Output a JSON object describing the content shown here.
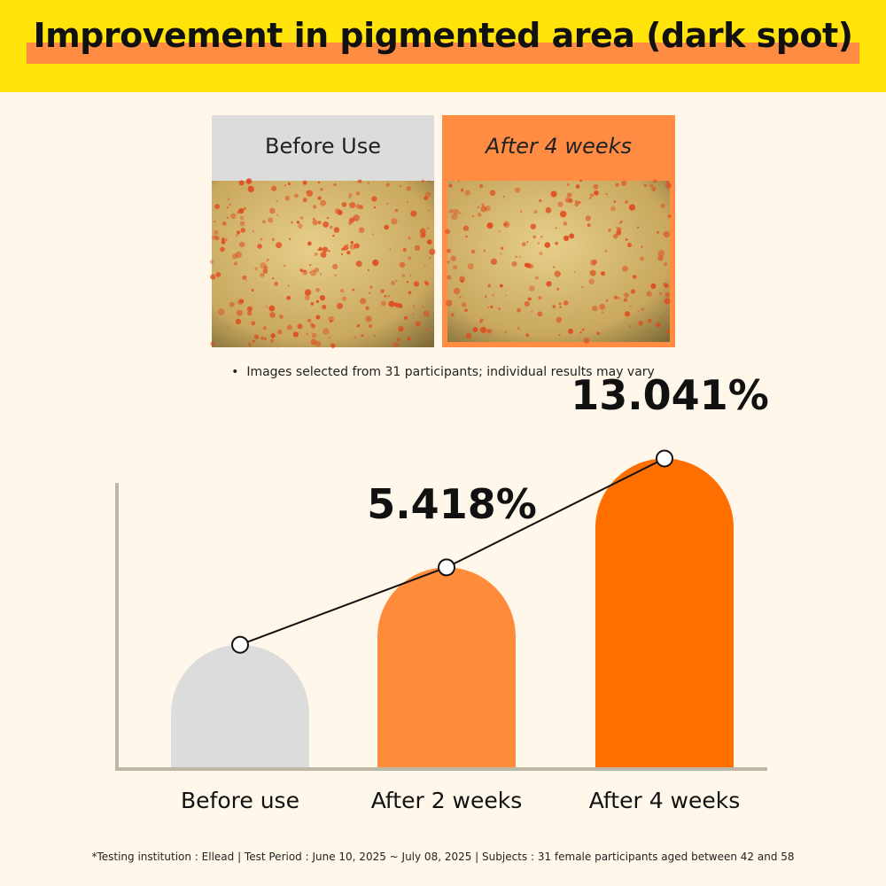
{
  "header": {
    "title": "Improvement in pigmented area (dark spot)"
  },
  "images": {
    "before_caption": "Before Use",
    "after_caption": "After 4 weeks",
    "note": "Images selected from 31 participants; individual results may vary"
  },
  "chart_data": {
    "type": "bar",
    "categories": [
      "Before use",
      "After 2 weeks",
      "After 4 weeks"
    ],
    "values": [
      0,
      5.418,
      13.041
    ],
    "value_labels": [
      null,
      "5.418%",
      "13.041%"
    ],
    "colors": [
      "#dcdcdc",
      "#ff8c3a",
      "#ff6f00"
    ],
    "ylim": [
      -8.7,
      14
    ]
  },
  "footnote": "*Testing institution : Ellead |  Test Period : June 10, 2025 ~ July 08, 2025 |  Subjects : 31 female participants aged between 42 and 58"
}
